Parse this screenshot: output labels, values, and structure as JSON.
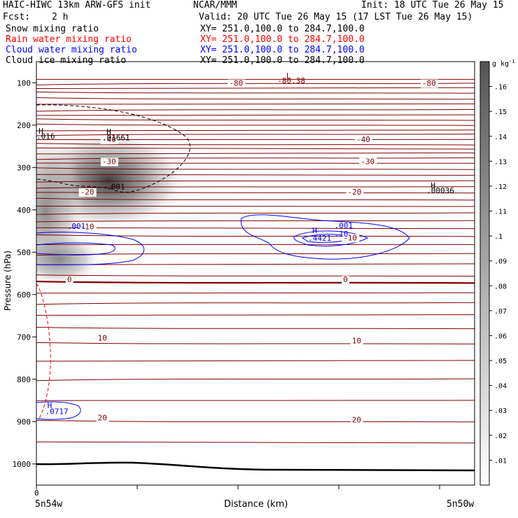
{
  "header": {
    "model": "HAIC-HIWC 13km ARW-GFS init",
    "org": "NCAR/MMM",
    "init": "Init: 18 UTC Tue 26 May 15",
    "fcst_label": "Fcst:",
    "fcst_value": "2 h",
    "valid": "Valid: 20 UTC Tue 26 May 15 (17 LST Tue 26 May 15)"
  },
  "fields": [
    {
      "name": "Snow mixing ratio",
      "xsec": "XY= 251.0,100.0 to 284.7,100.0",
      "color": "#000000"
    },
    {
      "name": "Rain water mixing ratio",
      "xsec": "XY= 251.0,100.0 to 284.7,100.0",
      "color": "#ff0000"
    },
    {
      "name": "Cloud water mixing ratio",
      "xsec": "XY= 251.0,100.0 to 284.7,100.0",
      "color": "#0000ff"
    },
    {
      "name": "Cloud ice mixing ratio",
      "xsec": "XY= 251.0,100.0 to 284.7,100.0",
      "color": "#000000"
    }
  ],
  "chart_data": {
    "type": "contour-cross-section",
    "ylabel": "Pressure (hPa)",
    "xlabel": "Distance (km)",
    "x_start_label": "5n54w",
    "x_end_label": "5n50w",
    "x_zero_label": "0",
    "y_ticks": [
      100,
      200,
      300,
      400,
      500,
      600,
      700,
      800,
      900,
      1000
    ],
    "ylim": [
      1050,
      50
    ],
    "colorbar": {
      "unit": "g kg",
      "unit_sup": "-1",
      "ticks": [
        ".01",
        ".02",
        ".03",
        ".04",
        ".05",
        ".06",
        ".07",
        ".08",
        ".09",
        ".1",
        ".11",
        ".12",
        ".13",
        ".14",
        ".15",
        ".16"
      ],
      "color": "#555555"
    },
    "temperature_labels": [
      {
        "text": "-80",
        "p": 107,
        "x": 0.44,
        "color": "#800000"
      },
      {
        "text": "-80",
        "p": 107,
        "x": 0.88,
        "color": "#800000"
      },
      {
        "text": "-40",
        "p": 240,
        "x": 0.15,
        "color": "#800000"
      },
      {
        "text": "-40",
        "p": 240,
        "x": 0.73,
        "color": "#800000"
      },
      {
        "text": "-30",
        "p": 292,
        "x": 0.15,
        "color": "#800000"
      },
      {
        "text": "-30",
        "p": 292,
        "x": 0.74,
        "color": "#800000"
      },
      {
        "text": "-20",
        "p": 364,
        "x": 0.1,
        "color": "#800000"
      },
      {
        "text": "-20",
        "p": 364,
        "x": 0.71,
        "color": "#800000"
      },
      {
        "text": "-10",
        "p": 446,
        "x": 0.1,
        "color": "#800000"
      },
      {
        "text": "-10",
        "p": 472,
        "x": 0.7,
        "color": "#800000"
      },
      {
        "text": "0",
        "p": 571,
        "x": 0.07,
        "color": "#800000"
      },
      {
        "text": "0",
        "p": 571,
        "x": 0.7,
        "color": "#800000"
      },
      {
        "text": "10",
        "p": 709,
        "x": 0.14,
        "color": "#800000"
      },
      {
        "text": "10",
        "p": 715,
        "x": 0.72,
        "color": "#800000"
      },
      {
        "text": "20",
        "p": 897,
        "x": 0.14,
        "color": "#800000"
      },
      {
        "text": "20",
        "p": 902,
        "x": 0.72,
        "color": "#800000"
      }
    ],
    "extrema_labels": [
      {
        "text": "L",
        "p": 90,
        "x": 0.57,
        "color": "#800000"
      },
      {
        "text": "-80.38",
        "p": 101,
        "x": 0.55,
        "color": "#800000"
      },
      {
        "text": "H",
        "p": 220,
        "x": 0.005,
        "color": "#000000"
      },
      {
        "text": ".016",
        "p": 233,
        "x": 0.0,
        "color": "#000000"
      },
      {
        "text": "H",
        "p": 222,
        "x": 0.16,
        "color": "#000000"
      },
      {
        "text": ".01661",
        "p": 236,
        "x": 0.15,
        "color": "#000000"
      },
      {
        "text": ".001",
        "p": 352,
        "x": 0.16,
        "color": "#000000"
      },
      {
        "text": "H",
        "p": 348,
        "x": 0.9,
        "color": "#000000"
      },
      {
        "text": ".00036",
        "p": 361,
        "x": 0.89,
        "color": "#000000"
      },
      {
        "text": ".001",
        "p": 445,
        "x": 0.07,
        "color": "#0000ff"
      },
      {
        "text": ".001",
        "p": 443,
        "x": 0.68,
        "color": "#0000ff"
      },
      {
        "text": "H",
        "p": 455,
        "x": 0.63,
        "color": "#0000ff"
      },
      {
        "text": ".10",
        "p": 463,
        "x": 0.68,
        "color": "#0000ff"
      },
      {
        "text": ".4421",
        "p": 473,
        "x": 0.62,
        "color": "#0000ff"
      },
      {
        "text": "H",
        "p": 868,
        "x": 0.025,
        "color": "#0000ff"
      },
      {
        "text": ".0717",
        "p": 882,
        "x": 0.02,
        "color": "#0000ff"
      }
    ]
  }
}
